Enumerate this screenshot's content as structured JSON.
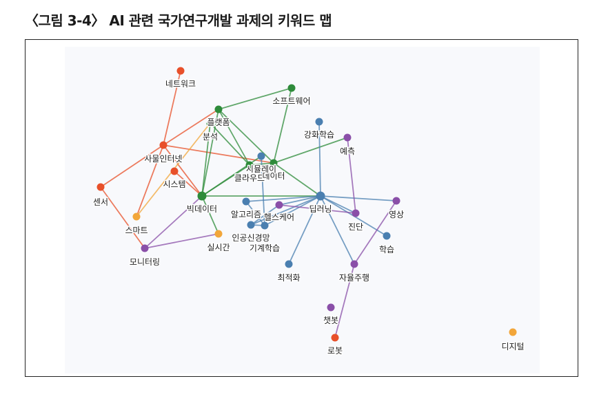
{
  "caption": "〈그림 3-4〉 AI 관련 국가연구개발 과제의 키워드 맵",
  "colors": {
    "red": "#e8502a",
    "green": "#2e8b3a",
    "blue": "#4a7fb0",
    "purple": "#8a4fa8",
    "orange": "#f2a63a",
    "plot_background": "#f8f9fc"
  },
  "nodes": [
    {
      "id": "network",
      "label": "네트워크",
      "group": "red"
    },
    {
      "id": "iot",
      "label": "사물인터넷",
      "group": "red"
    },
    {
      "id": "sensor",
      "label": "센서",
      "group": "red"
    },
    {
      "id": "system",
      "label": "시스템",
      "group": "red"
    },
    {
      "id": "robot",
      "label": "로봇",
      "group": "red"
    },
    {
      "id": "software",
      "label": "소프트웨어",
      "group": "green"
    },
    {
      "id": "platform",
      "label": "플랫폼",
      "group": "green"
    },
    {
      "id": "analysis",
      "label": "분석",
      "group": "green"
    },
    {
      "id": "cloud",
      "label": "클라우드",
      "group": "green"
    },
    {
      "id": "data",
      "label": "데이터",
      "group": "green"
    },
    {
      "id": "bigdata",
      "label": "빅데이터",
      "group": "green"
    },
    {
      "id": "reinforcement",
      "label": "강화학습",
      "group": "blue"
    },
    {
      "id": "simulation",
      "label": "시뮬레이",
      "group": "blue"
    },
    {
      "id": "deeplearning",
      "label": "딥러닝",
      "group": "blue"
    },
    {
      "id": "algorithm",
      "label": "알고리즘",
      "group": "blue"
    },
    {
      "id": "neuralnet",
      "label": "인공신경망",
      "group": "blue"
    },
    {
      "id": "machinelearning",
      "label": "기계학습",
      "group": "blue"
    },
    {
      "id": "optimization",
      "label": "최적화",
      "group": "blue"
    },
    {
      "id": "learning",
      "label": "학습",
      "group": "blue"
    },
    {
      "id": "prediction",
      "label": "예측",
      "group": "purple"
    },
    {
      "id": "diagnosis",
      "label": "진단",
      "group": "purple"
    },
    {
      "id": "image",
      "label": "영상",
      "group": "purple"
    },
    {
      "id": "healthcare",
      "label": "헬스케어",
      "group": "purple"
    },
    {
      "id": "monitoring",
      "label": "모니터링",
      "group": "purple"
    },
    {
      "id": "autonomous",
      "label": "자율주행",
      "group": "purple"
    },
    {
      "id": "chatbot",
      "label": "챗봇",
      "group": "purple"
    },
    {
      "id": "smart",
      "label": "스마트",
      "group": "orange"
    },
    {
      "id": "realtime",
      "label": "실시간",
      "group": "orange"
    },
    {
      "id": "digital",
      "label": "디지털",
      "group": "orange"
    }
  ],
  "edges": [
    {
      "source": "network",
      "target": "iot"
    },
    {
      "source": "iot",
      "target": "sensor"
    },
    {
      "source": "iot",
      "target": "platform"
    },
    {
      "source": "iot",
      "target": "data"
    },
    {
      "source": "iot",
      "target": "smart"
    },
    {
      "source": "iot",
      "target": "bigdata"
    },
    {
      "source": "sensor",
      "target": "monitoring"
    },
    {
      "source": "system",
      "target": "bigdata"
    },
    {
      "source": "smart",
      "target": "analysis"
    },
    {
      "source": "monitoring",
      "target": "bigdata"
    },
    {
      "source": "monitoring",
      "target": "realtime"
    },
    {
      "source": "bigdata",
      "target": "realtime"
    },
    {
      "source": "software",
      "target": "platform"
    },
    {
      "source": "software",
      "target": "data"
    },
    {
      "source": "platform",
      "target": "cloud"
    },
    {
      "source": "platform",
      "target": "data"
    },
    {
      "source": "platform",
      "target": "bigdata"
    },
    {
      "source": "analysis",
      "target": "cloud"
    },
    {
      "source": "analysis",
      "target": "bigdata"
    },
    {
      "source": "bigdata",
      "target": "cloud"
    },
    {
      "source": "bigdata",
      "target": "simulation"
    },
    {
      "source": "bigdata",
      "target": "deeplearning"
    },
    {
      "source": "data",
      "target": "prediction"
    },
    {
      "source": "data",
      "target": "deeplearning"
    },
    {
      "source": "cloud",
      "target": "data"
    },
    {
      "source": "reinforcement",
      "target": "deeplearning"
    },
    {
      "source": "simulation",
      "target": "machinelearning"
    },
    {
      "source": "deeplearning",
      "target": "algorithm"
    },
    {
      "source": "deeplearning",
      "target": "neuralnet"
    },
    {
      "source": "deeplearning",
      "target": "machinelearning"
    },
    {
      "source": "deeplearning",
      "target": "diagnosis"
    },
    {
      "source": "deeplearning",
      "target": "image"
    },
    {
      "source": "deeplearning",
      "target": "optimization"
    },
    {
      "source": "deeplearning",
      "target": "learning"
    },
    {
      "source": "deeplearning",
      "target": "autonomous"
    },
    {
      "source": "deeplearning",
      "target": "healthcare"
    },
    {
      "source": "algorithm",
      "target": "machinelearning"
    },
    {
      "source": "neuralnet",
      "target": "machinelearning"
    },
    {
      "source": "neuralnet",
      "target": "healthcare"
    },
    {
      "source": "prediction",
      "target": "diagnosis"
    },
    {
      "source": "diagnosis",
      "target": "healthcare"
    },
    {
      "source": "image",
      "target": "autonomous"
    },
    {
      "source": "autonomous",
      "target": "robot"
    }
  ]
}
